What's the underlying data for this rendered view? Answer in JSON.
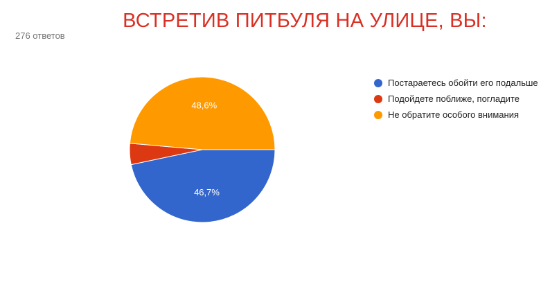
{
  "summary": {
    "responses_label": "276 ответов"
  },
  "chart_data": {
    "type": "pie",
    "title": "ВСТРЕТИВ ПИТБУЛЯ НА УЛИЦЕ, ВЫ:",
    "legend_position": "right",
    "slices": [
      {
        "name": "Постараетесь обойти его подальше",
        "value": 46.7,
        "label": "46,7%",
        "color": "#3366cc"
      },
      {
        "name": "Подойдете поближе, погладите",
        "value": 4.7,
        "label": "",
        "color": "#dc3912"
      },
      {
        "name": "Не обратите особого внимания",
        "value": 48.6,
        "label": "48,6%",
        "color": "#ff9900"
      }
    ]
  }
}
